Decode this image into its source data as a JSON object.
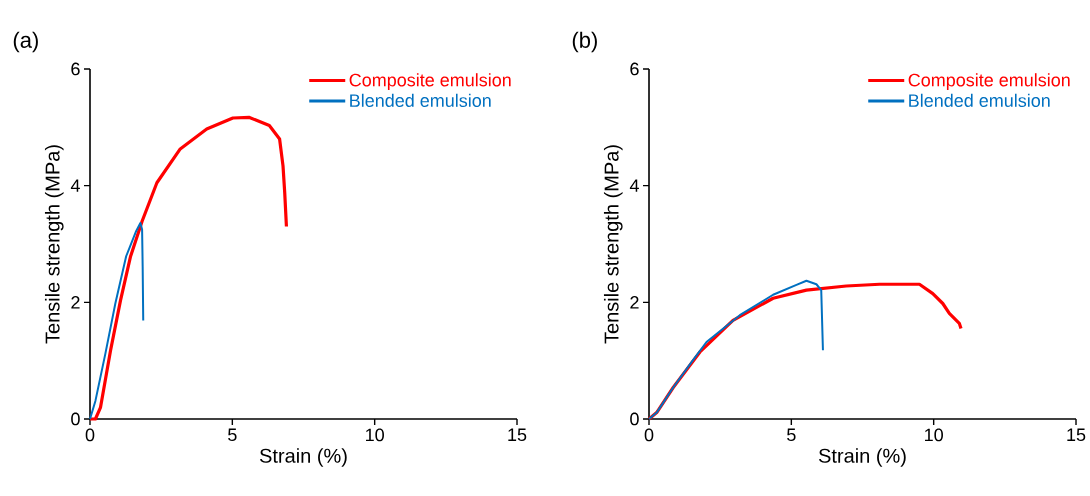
{
  "chart_data": [
    {
      "type": "line",
      "title": "(a)",
      "xlabel": "Strain (%)",
      "ylabel": "Tensile strength (MPa)",
      "xlim": [
        0,
        15
      ],
      "ylim": [
        0,
        6
      ],
      "xticks": [
        0,
        5,
        10,
        15
      ],
      "yticks": [
        0,
        2,
        4,
        6
      ],
      "legend": "top right",
      "line_style": "solid",
      "series": [
        {
          "name": "Composite emulsion",
          "color": "#ff0000",
          "x": [
            0,
            0.19,
            0.37,
            0.72,
            1.07,
            1.42,
            1.83,
            2.35,
            3.17,
            4.1,
            5.02,
            5.6,
            6.3,
            6.66,
            6.78,
            6.84,
            6.9
          ],
          "values": [
            0,
            0,
            0.2,
            1.17,
            2.03,
            2.78,
            3.39,
            4.05,
            4.63,
            4.97,
            5.16,
            5.17,
            5.03,
            4.8,
            4.34,
            3.88,
            3.3
          ]
        },
        {
          "name": "Blended emulsion",
          "color": "#0070c0",
          "x": [
            0,
            0.19,
            0.54,
            0.89,
            1.27,
            1.62,
            1.77,
            1.83,
            1.85,
            1.87
          ],
          "values": [
            0,
            0.31,
            1.12,
            1.98,
            2.79,
            3.22,
            3.36,
            3.25,
            2.61,
            1.69
          ]
        }
      ]
    },
    {
      "type": "line",
      "title": "(b)",
      "xlabel": "Strain (%)",
      "ylabel": "Tensile strength (MPa)",
      "xlim": [
        0,
        15
      ],
      "ylim": [
        0,
        6
      ],
      "xticks": [
        0,
        5,
        10,
        15
      ],
      "yticks": [
        0,
        2,
        4,
        6
      ],
      "legend": "top right",
      "line_style": "solid",
      "series": [
        {
          "name": "Composite emulsion",
          "color": "#ff0000",
          "x": [
            0,
            0.27,
            0.85,
            1.79,
            2.95,
            4.36,
            5.53,
            6.93,
            8.1,
            9.5,
            9.97,
            10.32,
            10.55,
            10.9,
            10.96
          ],
          "values": [
            0,
            0.11,
            0.54,
            1.15,
            1.69,
            2.07,
            2.21,
            2.28,
            2.31,
            2.31,
            2.15,
            1.98,
            1.81,
            1.64,
            1.55
          ]
        },
        {
          "name": "Blended emulsion",
          "color": "#0070c0",
          "x": [
            0,
            0.27,
            0.85,
            1.5,
            2.02,
            3.19,
            4.36,
            5.18,
            5.53,
            5.88,
            6.05,
            6.11
          ],
          "values": [
            0,
            0.11,
            0.54,
            0.98,
            1.32,
            1.78,
            2.13,
            2.3,
            2.37,
            2.31,
            2.21,
            1.18
          ]
        }
      ]
    }
  ]
}
